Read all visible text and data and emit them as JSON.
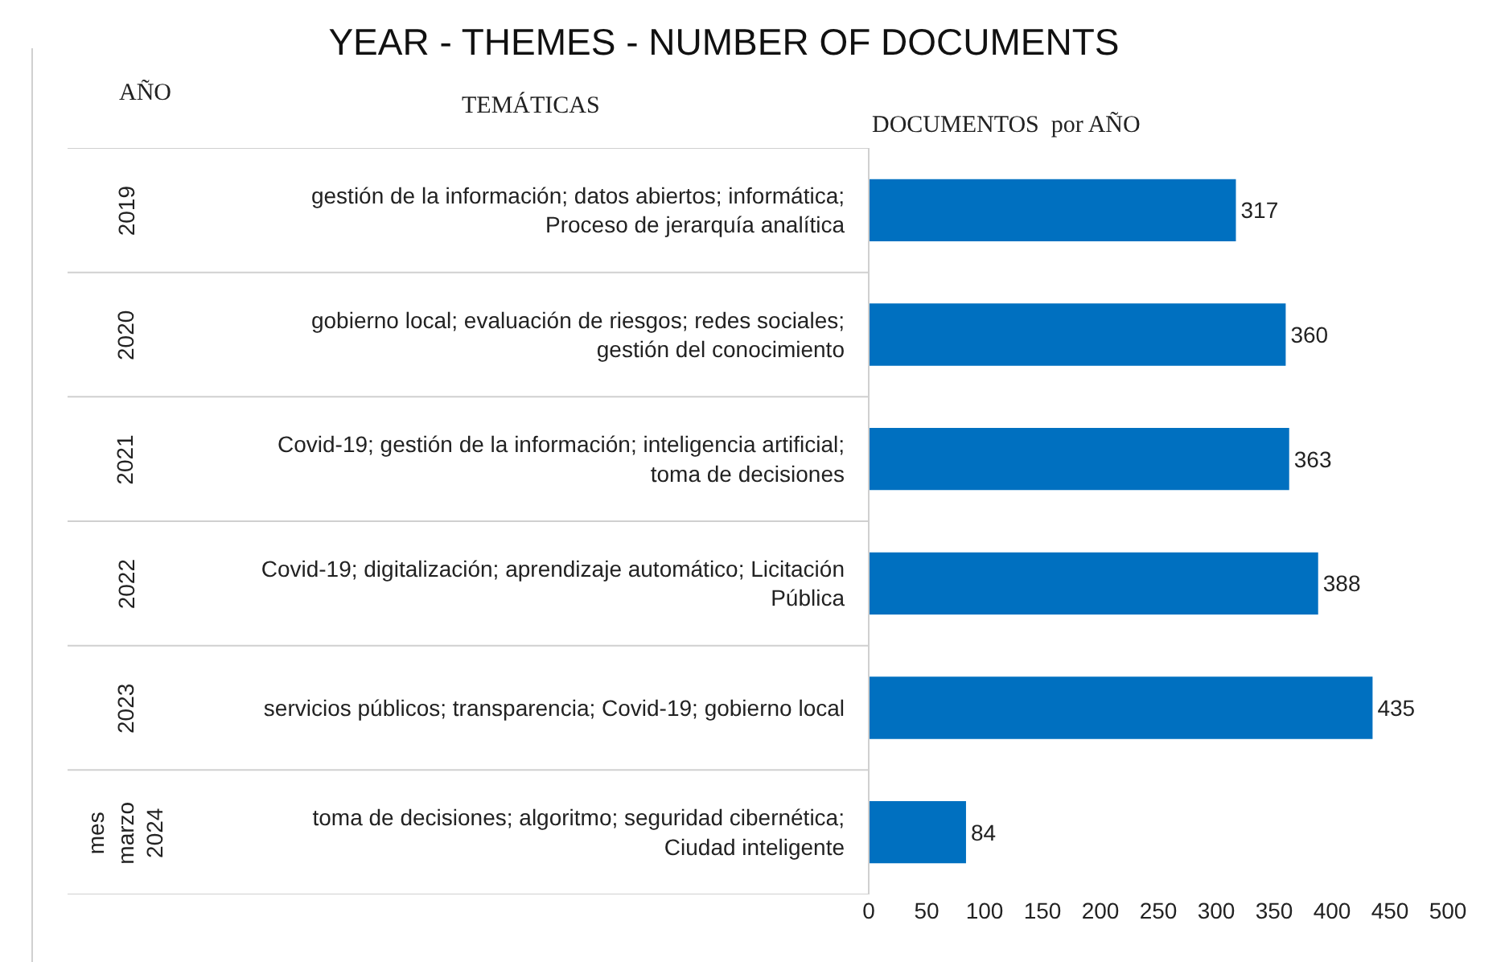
{
  "chart_data": {
    "type": "bar",
    "orientation": "horizontal",
    "title": "YEAR - THEMES - NUMBER OF DOCUMENTS",
    "categories": [
      "gestión de la información; datos abiertos; informática;\nProceso de jerarquía analítica",
      "gobierno local; evaluación de riesgos; redes sociales;\ngestión del conocimiento",
      "Covid-19; gestión de la información; inteligencia artificial;\ntoma de decisiones",
      "Covid-19; digitalización; aprendizaje automático; Licitación\nPública",
      "servicios públicos; transparencia; Covid-19; gobierno local",
      "toma de decisiones; algoritmo; seguridad cibernética;\nCiudad inteligente"
    ],
    "values": [
      317,
      360,
      363,
      388,
      435,
      84
    ],
    "color": "#0070c0",
    "xlim": [
      0,
      500
    ],
    "xticks": [
      0,
      50,
      100,
      150,
      200,
      250,
      300,
      350,
      400,
      450,
      500
    ],
    "data_labels": true,
    "annotations": [
      "AÑO",
      "TEMÁTICAS",
      "DOCUMENTOS  por AÑO",
      "2019",
      "2020",
      "2021",
      "2022",
      "2023",
      "mes\nmarzo\n2024"
    ]
  }
}
